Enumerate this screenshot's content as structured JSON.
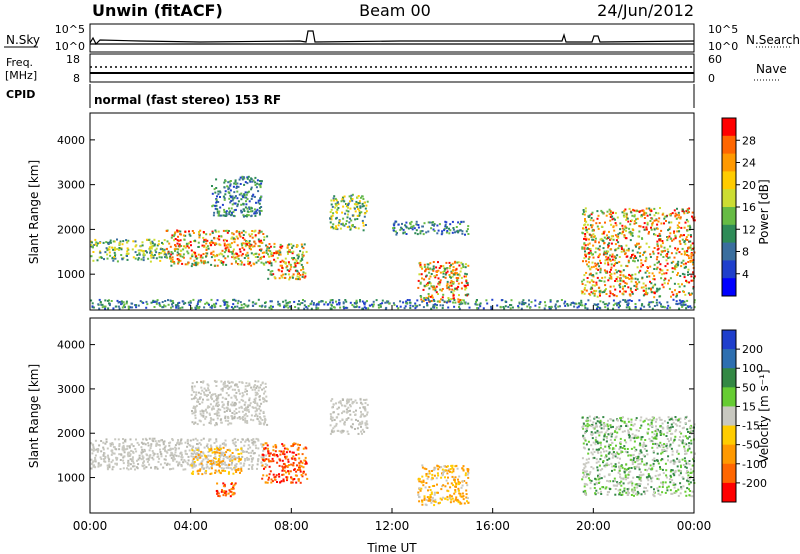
{
  "header": {
    "station": "Unwin (fitACF)",
    "beam": "Beam 00",
    "date": "24/Jun/2012"
  },
  "strip_panels": {
    "nsky": {
      "left_label": "N.Sky",
      "right_label": "N.Search",
      "ytick_left": [
        "10^5",
        "10^0"
      ],
      "ytick_right": [
        "10^5",
        "10^0"
      ]
    },
    "freq": {
      "left_label_line1": "Freq.",
      "left_label_line2": "[MHz]",
      "right_label": "Nave",
      "ytick_left": [
        "18",
        "8"
      ],
      "ytick_right": [
        "60",
        "0"
      ]
    },
    "cpid": {
      "label": "CPID",
      "text": "normal (fast stereo) 153 RF"
    }
  },
  "chart_data": [
    {
      "type": "heatmap",
      "parameter": "power",
      "title": "",
      "xlabel": "",
      "ylabel": "Slant Range [km]",
      "xlim": [
        "00:00",
        "24:00"
      ],
      "ylim": [
        200,
        4600
      ],
      "yticks": [
        "1000",
        "2000",
        "3000",
        "4000"
      ],
      "colorbar_label": "Power [dB]",
      "colorbar_ticks": [
        "28",
        "24",
        "20",
        "16",
        "12",
        "8",
        "4"
      ],
      "colorbar_colors": [
        "#ff0000",
        "#ff6600",
        "#ff9900",
        "#ffcc00",
        "#ccdd33",
        "#66bb44",
        "#2e8b57",
        "#3a6e9e",
        "#1f3fcc",
        "#0000ff"
      ],
      "scatter_regions": [
        {
          "t": [
            0.0,
            3.0
          ],
          "r": [
            1300,
            1800
          ],
          "level": "mid"
        },
        {
          "t": [
            3.0,
            7.0
          ],
          "r": [
            1200,
            2000
          ],
          "level": "high"
        },
        {
          "t": [
            7.0,
            8.6
          ],
          "r": [
            900,
            1700
          ],
          "level": "high"
        },
        {
          "t": [
            4.8,
            6.8
          ],
          "r": [
            2300,
            3200
          ],
          "level": "low"
        },
        {
          "t": [
            9.5,
            11.0
          ],
          "r": [
            2000,
            2800
          ],
          "level": "mid"
        },
        {
          "t": [
            13.0,
            15.0
          ],
          "r": [
            400,
            1300
          ],
          "level": "high"
        },
        {
          "t": [
            12.0,
            15.0
          ],
          "r": [
            1900,
            2200
          ],
          "level": "low"
        },
        {
          "t": [
            19.5,
            24.0
          ],
          "r": [
            500,
            2500
          ],
          "level": "high"
        },
        {
          "t": [
            0.0,
            24.0
          ],
          "r": [
            250,
            450
          ],
          "level": "low"
        }
      ]
    },
    {
      "type": "heatmap",
      "parameter": "velocity",
      "title": "",
      "xlabel": "Time UT",
      "ylabel": "Slant Range [km]",
      "xlim": [
        "00:00",
        "24:00"
      ],
      "ylim": [
        200,
        4600
      ],
      "yticks": [
        "1000",
        "2000",
        "3000",
        "4000"
      ],
      "xticks": [
        "00:00",
        "04:00",
        "08:00",
        "12:00",
        "16:00",
        "20:00",
        "00:00"
      ],
      "colorbar_label": "Velocity [m s⁻¹]",
      "colorbar_ticks": [
        "200",
        "100",
        "50",
        "15",
        "-15",
        "-50",
        "-100",
        "-200"
      ],
      "colorbar_colors": [
        "#1f3fcc",
        "#2e6fb0",
        "#338844",
        "#66cc33",
        "#c8c8c0",
        "#ffcc00",
        "#ff9900",
        "#ff6600",
        "#ff0000"
      ],
      "scatter_regions": [
        {
          "t": [
            0.0,
            7.0
          ],
          "r": [
            1200,
            1900
          ],
          "level": "ground"
        },
        {
          "t": [
            4.0,
            7.0
          ],
          "r": [
            2200,
            3200
          ],
          "level": "ground"
        },
        {
          "t": [
            4.0,
            6.0
          ],
          "r": [
            1100,
            1700
          ],
          "level": "neg"
        },
        {
          "t": [
            6.8,
            8.6
          ],
          "r": [
            900,
            1800
          ],
          "level": "strong_neg"
        },
        {
          "t": [
            5.0,
            5.8
          ],
          "r": [
            600,
            900
          ],
          "level": "strong_neg"
        },
        {
          "t": [
            9.5,
            11.0
          ],
          "r": [
            2000,
            2800
          ],
          "level": "ground"
        },
        {
          "t": [
            13.0,
            15.0
          ],
          "r": [
            400,
            1300
          ],
          "level": "neg"
        },
        {
          "t": [
            19.5,
            24.0
          ],
          "r": [
            600,
            2400
          ],
          "level": "pos"
        }
      ]
    }
  ]
}
